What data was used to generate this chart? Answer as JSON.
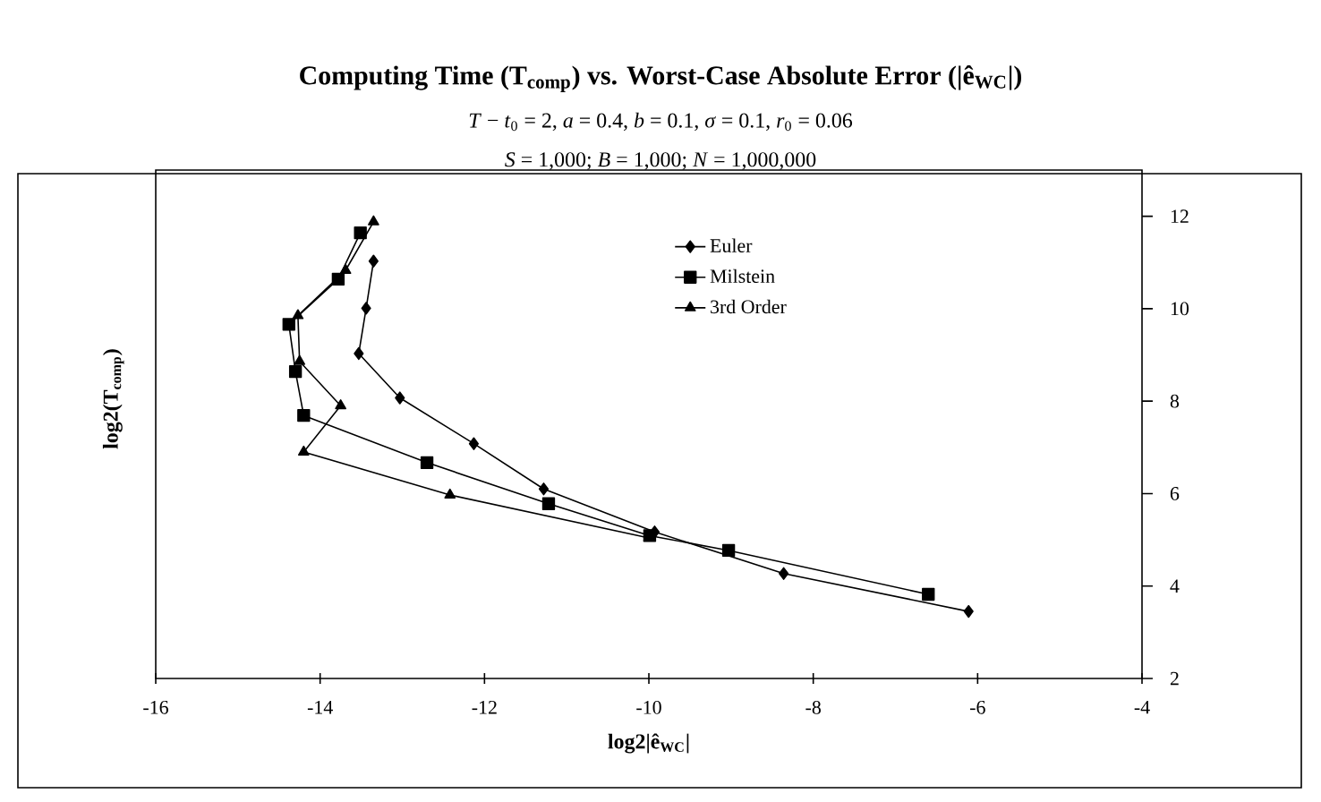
{
  "chart_data": {
    "type": "line",
    "title": "Computing Time (T$_{comp}$) vs. Worst-Case Absolute Error (|ê$_{WC}$|)",
    "subtitle": "*T* − *t*$_{0}$ = 2,  *a* = 0.4,  *b* = 0.1,  *σ* = 0.1,  *r*$_{0}$ = 0.06",
    "annotations": [
      "*S* = 1,000;  *B* = 1,000;  *N* = 1,000,000"
    ],
    "xlabel": "log2|ê$_{WC}$|",
    "ylabel": "log2(T$_{comp}$)",
    "xlim": [
      -16,
      -4
    ],
    "xticks": [
      -16,
      -14,
      -12,
      -10,
      -8,
      -6,
      -4
    ],
    "ylim": [
      2,
      13
    ],
    "yticks": [
      2,
      4,
      6,
      8,
      10,
      12
    ],
    "legend": "top right",
    "series": [
      {
        "name": "Euler",
        "color": "#000000",
        "marker": "diamond",
        "x": [
          -13.35,
          -13.44,
          -13.53,
          -13.03,
          -12.13,
          -11.28,
          -9.93,
          -8.36,
          -6.11
        ],
        "values": [
          11.03,
          10.01,
          9.03,
          8.07,
          7.08,
          6.1,
          5.17,
          4.27,
          3.45
        ]
      },
      {
        "name": "Milstein",
        "color": "#000000",
        "marker": "square",
        "x": [
          -13.51,
          -13.78,
          -14.38,
          -14.3,
          -14.2,
          -12.7,
          -11.22,
          -9.99,
          -9.03,
          -6.6
        ],
        "values": [
          11.64,
          10.64,
          9.66,
          8.64,
          7.69,
          6.67,
          5.78,
          5.09,
          4.77,
          3.82
        ]
      },
      {
        "name": "3rd Order",
        "color": "#000000",
        "marker": "triangle",
        "x": [
          -13.35,
          -13.69,
          -14.27,
          -14.25,
          -13.75,
          -14.2,
          -12.42,
          -10.0
        ],
        "values": [
          11.88,
          10.83,
          9.85,
          8.86,
          7.9,
          6.9,
          5.97,
          5.04
        ]
      }
    ]
  }
}
